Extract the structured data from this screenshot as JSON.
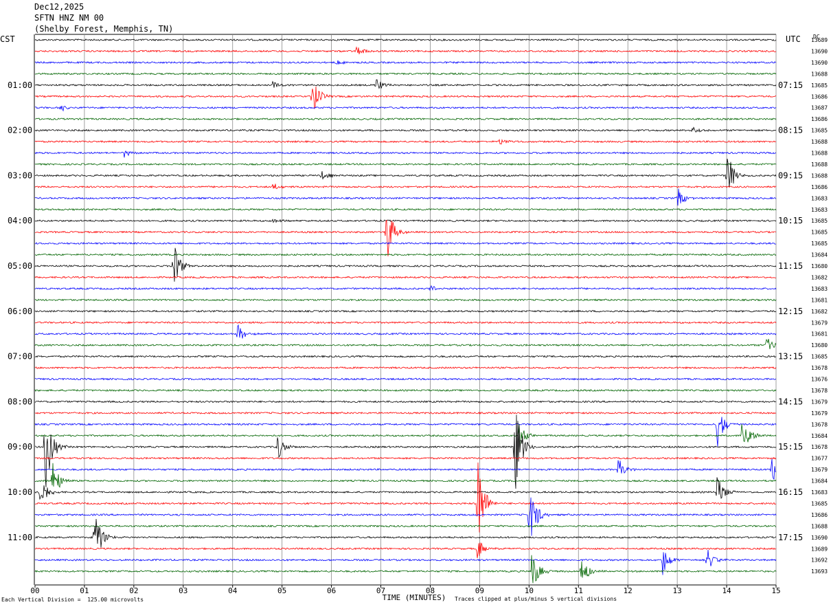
{
  "header": {
    "date": "Dec12,2025",
    "station": "SFTN HNZ NM 00",
    "location": "(Shelby Forest, Memphis, TN)"
  },
  "left_zone_label": "CST",
  "right_zone_label": "UTC",
  "top_right_label": "DC",
  "chart_data": {
    "type": "line",
    "title": "",
    "xlabel": "TIME (MINUTES)",
    "x_ticks": [
      "00",
      "01",
      "02",
      "03",
      "04",
      "05",
      "06",
      "07",
      "08",
      "09",
      "10",
      "11",
      "12",
      "13",
      "14",
      "15"
    ],
    "xlim": [
      0,
      15
    ],
    "rows_per_hour": 4,
    "row_minutes": 15,
    "row_count": 48,
    "trace_colors": [
      "#000000",
      "#ff0000",
      "#0000ff",
      "#006400"
    ],
    "left_hour_labels": [
      "01:00",
      "02:00",
      "03:00",
      "04:00",
      "05:00",
      "06:00",
      "07:00",
      "08:00",
      "09:00",
      "10:00",
      "11:00"
    ],
    "right_hour_labels": [
      "07:15",
      "08:15",
      "09:15",
      "10:15",
      "11:15",
      "12:15",
      "13:15",
      "14:15",
      "15:15",
      "16:15",
      "17:15"
    ],
    "dc_offsets": [
      "13689",
      "13690",
      "13690",
      "13688",
      "13685",
      "13686",
      "13687",
      "13686",
      "13685",
      "13688",
      "13688",
      "13688",
      "13688",
      "13686",
      "13683",
      "13683",
      "13685",
      "13685",
      "13685",
      "13684",
      "13680",
      "13682",
      "13683",
      "13681",
      "13682",
      "13679",
      "13681",
      "13680",
      "13685",
      "13678",
      "13676",
      "13678",
      "13679",
      "13679",
      "13678",
      "13684",
      "13678",
      "13677",
      "13679",
      "13684",
      "13683",
      "13685",
      "13686",
      "13688",
      "13690",
      "13689",
      "13692",
      "13693"
    ],
    "events": [
      {
        "row": 1,
        "minute": 6.5,
        "amp": 0.5
      },
      {
        "row": 2,
        "minute": 6.1,
        "amp": 0.3
      },
      {
        "row": 4,
        "minute": 4.8,
        "amp": 0.4
      },
      {
        "row": 4,
        "minute": 6.9,
        "amp": 0.8
      },
      {
        "row": 5,
        "minute": 5.6,
        "amp": 2.2
      },
      {
        "row": 6,
        "minute": 0.5,
        "amp": 0.4
      },
      {
        "row": 8,
        "minute": 13.3,
        "amp": 0.5
      },
      {
        "row": 9,
        "minute": 9.4,
        "amp": 0.4
      },
      {
        "row": 10,
        "minute": 1.8,
        "amp": 0.4
      },
      {
        "row": 12,
        "minute": 5.8,
        "amp": 0.5
      },
      {
        "row": 12,
        "minute": 14.0,
        "amp": 2.5
      },
      {
        "row": 13,
        "minute": 4.8,
        "amp": 0.4
      },
      {
        "row": 14,
        "minute": 13.0,
        "amp": 1.2
      },
      {
        "row": 16,
        "minute": 4.8,
        "amp": 0.3
      },
      {
        "row": 17,
        "minute": 7.1,
        "amp": 3.6
      },
      {
        "row": 20,
        "minute": 2.8,
        "amp": 2.4
      },
      {
        "row": 22,
        "minute": 8.0,
        "amp": 0.4
      },
      {
        "row": 26,
        "minute": 4.1,
        "amp": 1.0
      },
      {
        "row": 27,
        "minute": 14.8,
        "amp": 1.0
      },
      {
        "row": 34,
        "minute": 13.8,
        "amp": 2.3
      },
      {
        "row": 35,
        "minute": 14.3,
        "amp": 2.5
      },
      {
        "row": 35,
        "minute": 9.8,
        "amp": 1.2
      },
      {
        "row": 36,
        "minute": 0.2,
        "amp": 4.5
      },
      {
        "row": 36,
        "minute": 4.9,
        "amp": 1.3
      },
      {
        "row": 36,
        "minute": 9.7,
        "amp": 5.0
      },
      {
        "row": 38,
        "minute": 11.8,
        "amp": 1.1
      },
      {
        "row": 38,
        "minute": 14.9,
        "amp": 1.5
      },
      {
        "row": 39,
        "minute": 0.35,
        "amp": 2.2
      },
      {
        "row": 40,
        "minute": 0.1,
        "amp": 2.2
      },
      {
        "row": 40,
        "minute": 13.8,
        "amp": 2.0
      },
      {
        "row": 41,
        "minute": 8.95,
        "amp": 5.0
      },
      {
        "row": 42,
        "minute": 10.0,
        "amp": 3.6
      },
      {
        "row": 44,
        "minute": 1.2,
        "amp": 3.2
      },
      {
        "row": 45,
        "minute": 8.95,
        "amp": 1.2
      },
      {
        "row": 46,
        "minute": 12.7,
        "amp": 1.6
      },
      {
        "row": 46,
        "minute": 13.6,
        "amp": 1.2
      },
      {
        "row": 47,
        "minute": 10.05,
        "amp": 2.2
      },
      {
        "row": 47,
        "minute": 11.05,
        "amp": 1.8
      }
    ]
  },
  "footer": {
    "scale_note": "Each Vertical Division =  125.00 microvolts",
    "clip_note": "Traces clipped at plus/minus 5 vertical divisions"
  }
}
